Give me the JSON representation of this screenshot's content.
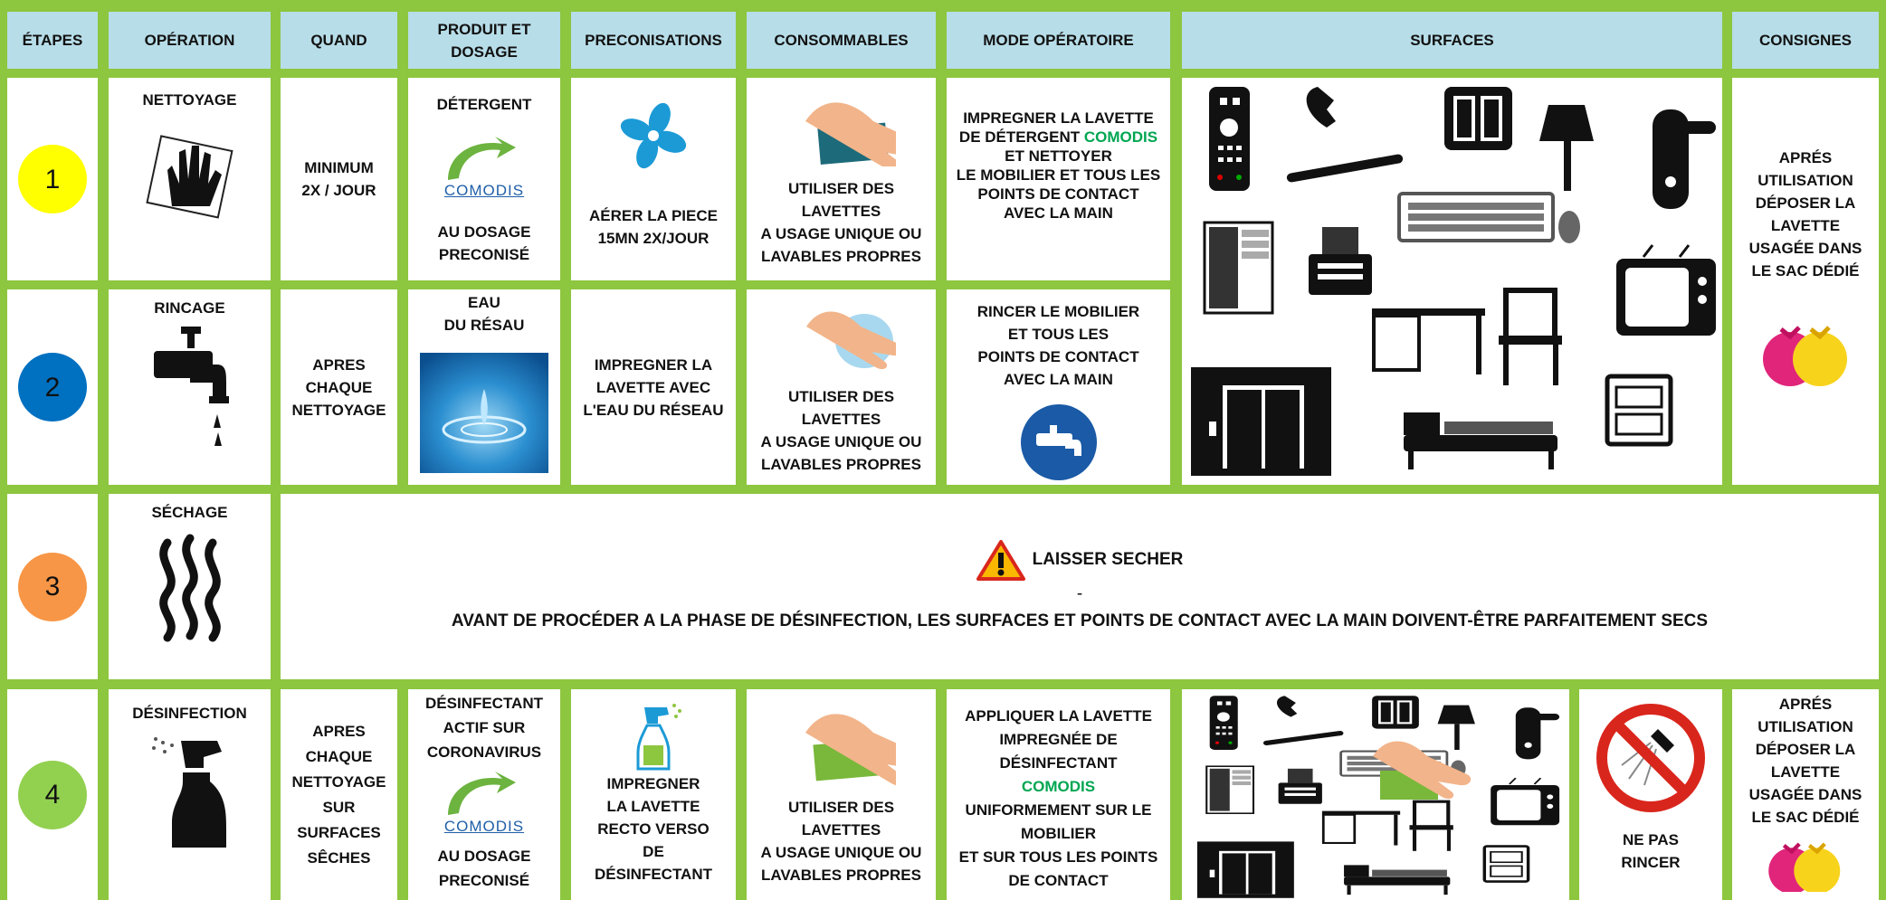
{
  "header": {
    "columns": [
      "ÉTAPES",
      "OPÉRATION",
      "QUAND",
      "PRODUIT ET DOSAGE",
      "PRECONISATIONS",
      "CONSOMMABLES",
      "MODE OPÉRATOIRE",
      "SURFACES",
      "CONSIGNES"
    ]
  },
  "steps": [
    {
      "number": "1",
      "operation": "NETTOYAGE",
      "quand": [
        "MINIMUM",
        "2X / JOUR"
      ],
      "produit": [
        "DÉTERGENT"
      ],
      "brand": "COMODIS",
      "dosage": [
        "AU DOSAGE",
        "PRECONISÉ"
      ],
      "preconisations": [
        "AÉRER LA PIECE",
        "15MN 2X/JOUR"
      ],
      "consommables": [
        "UTILISER DES LAVETTES",
        "A USAGE UNIQUE OU",
        "LAVABLES PROPRES"
      ],
      "mode": [
        "IMPREGNER LA LAVETTE",
        "DE DÉTERGENT",
        "COMODIS",
        "ET NETTOYER",
        "LE MOBILIER ET TOUS LES",
        "POINTS DE CONTACT",
        "AVEC LA MAIN"
      ],
      "consignes": [
        "APRÉS",
        "UTILISATION",
        "DÉPOSER LA",
        "LAVETTE",
        "USAGÉE  DANS",
        "LE SAC DÉDIÉ"
      ]
    },
    {
      "number": "2",
      "operation": "RINCAGE",
      "quand": [
        "APRES",
        "CHAQUE",
        "NETTOYAGE"
      ],
      "produit": [
        "EAU",
        "DU RÉSAU"
      ],
      "preconisations": [
        "IMPREGNER   LA",
        "LAVETTE AVEC",
        "L'EAU  DU RÉSEAU"
      ],
      "consommables": [
        "UTILISER DES LAVETTES",
        "A USAGE UNIQUE OU",
        "LAVABLES PROPRES"
      ],
      "mode": [
        "RINCER  LE MOBILIER",
        "ET TOUS LES",
        "POINTS DE CONTACT",
        "AVEC LA MAIN"
      ]
    },
    {
      "number": "3",
      "operation": "SÉCHAGE",
      "warning": "LAISSER SECHER",
      "separator": "-",
      "message": "AVANT DE PROCÉDER A LA PHASE DE DÉSINFECTION, LES SURFACES ET POINTS DE CONTACT AVEC LA MAIN DOIVENT-ÊTRE PARFAITEMENT SECS"
    },
    {
      "number": "4",
      "operation": "DÉSINFECTION",
      "quand": [
        "APRES",
        "CHAQUE",
        "NETTOYAGE",
        "SUR",
        "SURFACES",
        "SÊCHES"
      ],
      "produit": [
        "DÉSINFECTANT",
        "ACTIF SUR",
        "CORONAVIRUS"
      ],
      "brand": "COMODIS",
      "dosage": [
        "AU DOSAGE",
        "PRECONISÉ"
      ],
      "preconisations": [
        "IMPREGNER",
        "LA LAVETTE",
        "RECTO VERSO",
        "DE",
        "DÉSINFECTANT"
      ],
      "consommables": [
        "UTILISER DES LAVETTES",
        "A USAGE UNIQUE OU",
        "LAVABLES PROPRES"
      ],
      "mode": [
        "APPLIQUER LA LAVETTE",
        "IMPREGNÉE DE",
        "DÉSINFECTANT",
        "COMODIS",
        "UNIFORMEMENT SUR LE",
        "MOBILIER",
        "ET SUR TOUS LES POINTS",
        "DE CONTACT"
      ],
      "interdit": [
        "NE PAS",
        "RINCER"
      ],
      "consignes": [
        "APRÉS",
        "UTILISATION",
        "DÉPOSER LA",
        "LAVETTE",
        "USAGÉE  DANS",
        "LE SAC DÉDIÉ"
      ]
    }
  ]
}
